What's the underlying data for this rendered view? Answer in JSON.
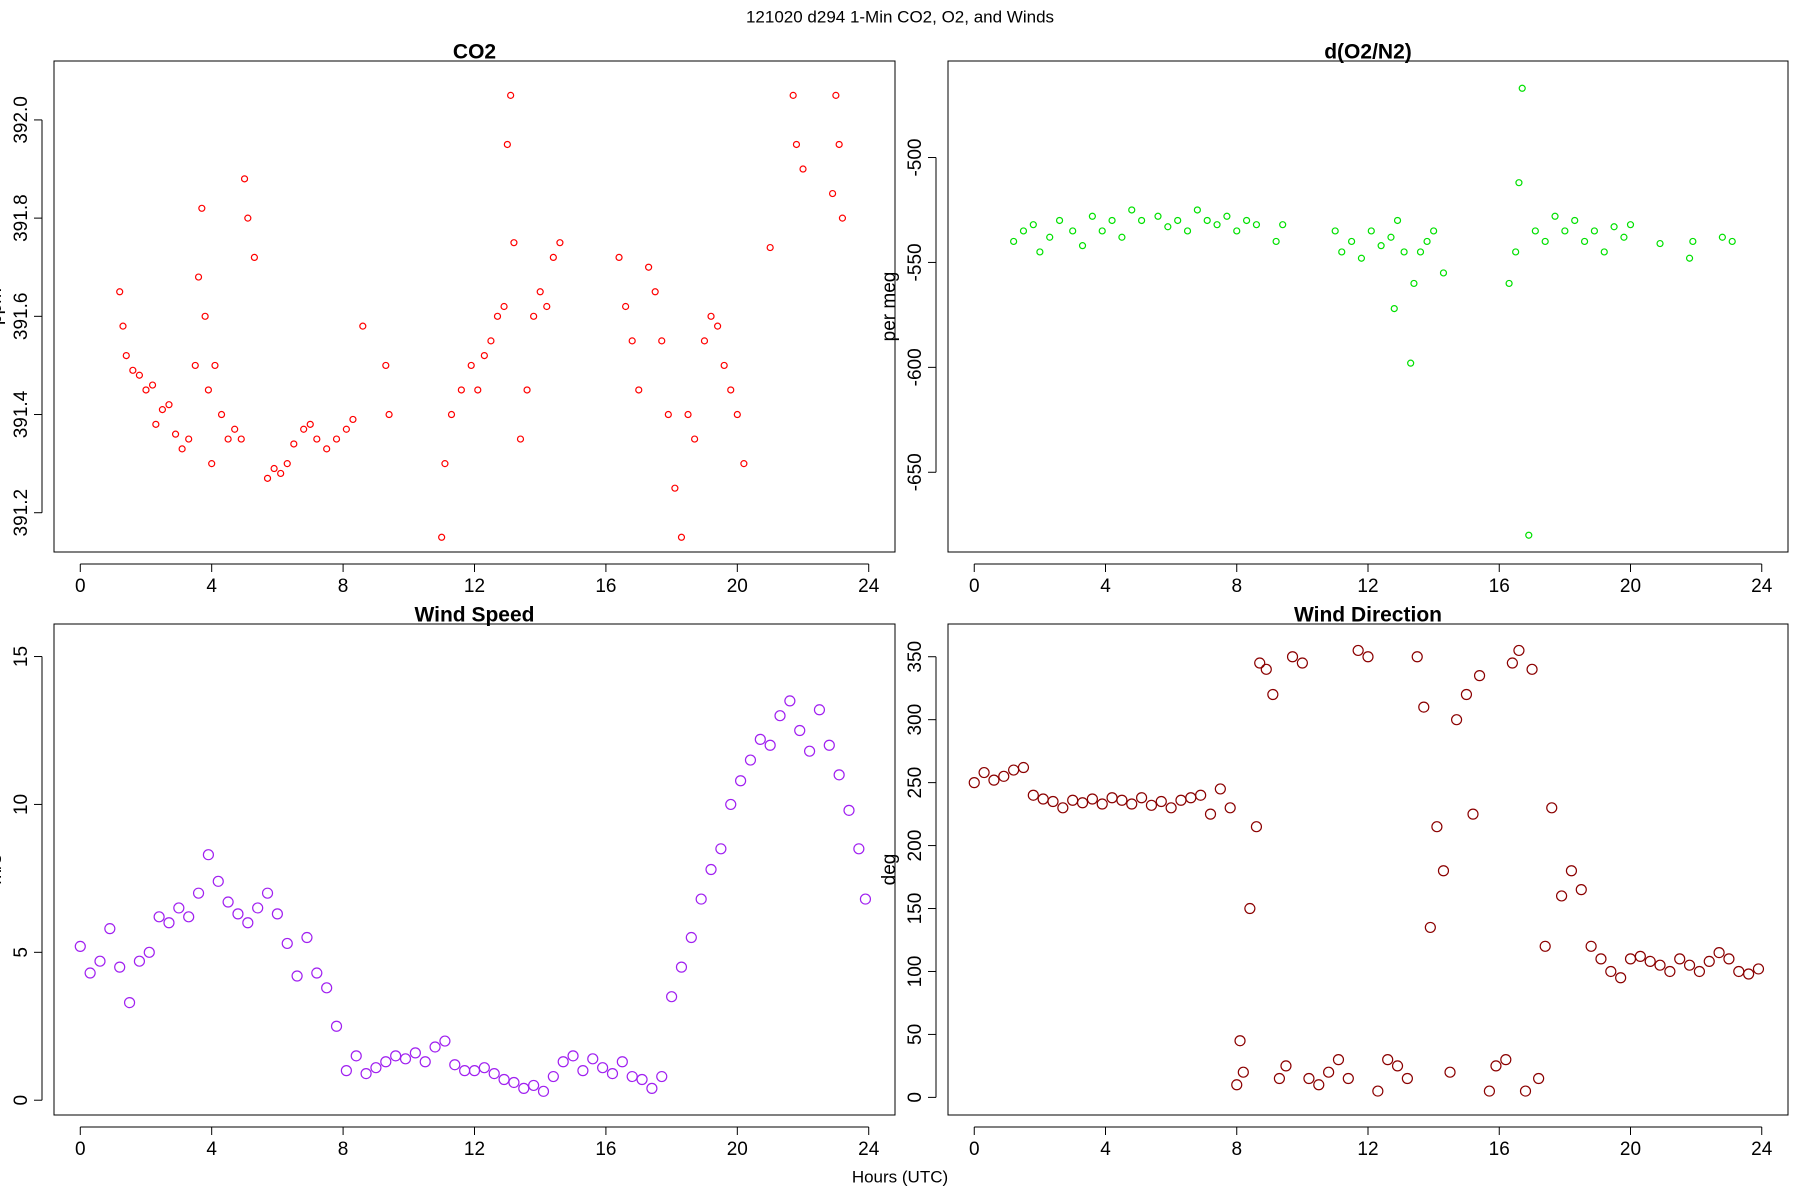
{
  "title": "121020   d294   1-Min CO2, O2, and Winds",
  "x_label": "Hours (UTC)",
  "chart_data": [
    {
      "type": "scatter",
      "title": "CO2",
      "y_label": "ppm",
      "color": "#ff0000",
      "xlim": [
        -0.8,
        24.8
      ],
      "xticks": [
        0,
        4,
        8,
        12,
        16,
        20,
        24
      ],
      "ylim": [
        391.12,
        392.12
      ],
      "yticks": [
        391.2,
        391.4,
        391.6,
        391.8,
        {
          "value": 392.0,
          "label": "392.0"
        }
      ],
      "x": [
        1.2,
        1.3,
        1.4,
        1.6,
        1.8,
        2.0,
        2.2,
        2.3,
        2.5,
        2.7,
        2.9,
        3.1,
        3.3,
        3.5,
        3.6,
        3.7,
        3.8,
        3.9,
        4.0,
        4.1,
        4.3,
        4.5,
        4.7,
        4.9,
        5.0,
        5.1,
        5.3,
        5.7,
        5.9,
        6.1,
        6.3,
        6.5,
        6.8,
        7.0,
        7.2,
        7.5,
        7.8,
        8.1,
        8.3,
        8.6,
        9.3,
        9.4,
        11.0,
        11.1,
        11.3,
        11.6,
        11.9,
        12.1,
        12.3,
        12.5,
        12.7,
        12.9,
        13.0,
        13.1,
        13.2,
        13.4,
        13.6,
        13.8,
        14.0,
        14.2,
        14.4,
        14.6,
        16.4,
        16.6,
        16.8,
        17.0,
        17.3,
        17.5,
        17.7,
        17.9,
        18.1,
        18.3,
        18.5,
        18.7,
        19.0,
        19.2,
        19.4,
        19.6,
        19.8,
        20.0,
        20.2,
        21.0,
        21.7,
        21.8,
        22.0,
        22.9,
        23.0,
        23.1,
        23.2
      ],
      "values": [
        391.65,
        391.58,
        391.52,
        391.49,
        391.48,
        391.45,
        391.46,
        391.38,
        391.41,
        391.42,
        391.36,
        391.33,
        391.35,
        391.5,
        391.68,
        391.82,
        391.6,
        391.45,
        391.3,
        391.5,
        391.4,
        391.35,
        391.37,
        391.35,
        391.88,
        391.8,
        391.72,
        391.27,
        391.29,
        391.28,
        391.3,
        391.34,
        391.37,
        391.38,
        391.35,
        391.33,
        391.35,
        391.37,
        391.39,
        391.58,
        391.5,
        391.4,
        391.15,
        391.3,
        391.4,
        391.45,
        391.5,
        391.45,
        391.52,
        391.55,
        391.6,
        391.62,
        391.95,
        392.05,
        391.75,
        391.35,
        391.45,
        391.6,
        391.65,
        391.62,
        391.72,
        391.75,
        391.72,
        391.62,
        391.55,
        391.45,
        391.7,
        391.65,
        391.55,
        391.4,
        391.25,
        391.15,
        391.4,
        391.35,
        391.55,
        391.6,
        391.58,
        391.5,
        391.45,
        391.4,
        391.3,
        391.74,
        392.05,
        391.95,
        391.9,
        391.85,
        392.05,
        391.95,
        391.8
      ]
    },
    {
      "type": "scatter",
      "title": "d(O2/N2)",
      "y_label": "per meg",
      "color": "#00e000",
      "xlim": [
        -0.8,
        24.8
      ],
      "xticks": [
        0,
        4,
        8,
        12,
        16,
        20,
        24
      ],
      "ylim": [
        -688,
        -454
      ],
      "yticks": [
        -650,
        -600,
        -550,
        -500
      ],
      "x": [
        1.2,
        1.5,
        1.8,
        2.0,
        2.3,
        2.6,
        3.0,
        3.3,
        3.6,
        3.9,
        4.2,
        4.5,
        4.8,
        5.1,
        5.6,
        5.9,
        6.2,
        6.5,
        6.8,
        7.1,
        7.4,
        7.7,
        8.0,
        8.3,
        8.6,
        9.2,
        9.4,
        11.0,
        11.2,
        11.5,
        11.8,
        12.1,
        12.4,
        12.7,
        12.8,
        12.9,
        13.1,
        13.3,
        13.4,
        13.6,
        13.8,
        14.0,
        14.3,
        16.3,
        16.5,
        16.6,
        16.7,
        16.9,
        17.1,
        17.4,
        17.7,
        18.0,
        18.3,
        18.6,
        18.9,
        19.2,
        19.5,
        19.8,
        20.0,
        20.9,
        21.8,
        21.9,
        22.8,
        23.1
      ],
      "values": [
        -540,
        -535,
        -532,
        -545,
        -538,
        -530,
        -535,
        -542,
        -528,
        -535,
        -530,
        -538,
        -525,
        -530,
        -528,
        -533,
        -530,
        -535,
        -525,
        -530,
        -532,
        -528,
        -535,
        -530,
        -532,
        -540,
        -532,
        -535,
        -545,
        -540,
        -548,
        -535,
        -542,
        -538,
        -572,
        -530,
        -545,
        -598,
        -560,
        -545,
        -540,
        -535,
        -555,
        -560,
        -545,
        -512,
        -467,
        -680,
        -535,
        -540,
        -528,
        -535,
        -530,
        -540,
        -535,
        -545,
        -533,
        -538,
        -532,
        -541,
        -548,
        -540,
        -538,
        -540
      ]
    },
    {
      "type": "scatter",
      "title": "Wind Speed",
      "y_label": "m/s",
      "color": "#a020f0",
      "xlim": [
        -0.8,
        24.8
      ],
      "xticks": [
        0,
        4,
        8,
        12,
        16,
        20,
        24
      ],
      "ylim": [
        -0.5,
        16.1
      ],
      "yticks": [
        0,
        5,
        10,
        15
      ],
      "x": [
        0.0,
        0.3,
        0.6,
        0.9,
        1.2,
        1.5,
        1.8,
        2.1,
        2.4,
        2.7,
        3.0,
        3.3,
        3.6,
        3.9,
        4.2,
        4.5,
        4.8,
        5.1,
        5.4,
        5.7,
        6.0,
        6.3,
        6.6,
        6.9,
        7.2,
        7.5,
        7.8,
        8.1,
        8.4,
        8.7,
        9.0,
        9.3,
        9.6,
        9.9,
        10.2,
        10.5,
        10.8,
        11.1,
        11.4,
        11.7,
        12.0,
        12.3,
        12.6,
        12.9,
        13.2,
        13.5,
        13.8,
        14.1,
        14.4,
        14.7,
        15.0,
        15.3,
        15.6,
        15.9,
        16.2,
        16.5,
        16.8,
        17.1,
        17.4,
        17.7,
        18.0,
        18.3,
        18.6,
        18.9,
        19.2,
        19.5,
        19.8,
        20.1,
        20.4,
        20.7,
        21.0,
        21.3,
        21.6,
        21.9,
        22.2,
        22.5,
        22.8,
        23.1,
        23.4,
        23.7,
        23.9
      ],
      "values": [
        5.2,
        4.3,
        4.7,
        5.8,
        4.5,
        3.3,
        4.7,
        5.0,
        6.2,
        6.0,
        6.5,
        6.2,
        7.0,
        8.3,
        7.4,
        6.7,
        6.3,
        6.0,
        6.5,
        7.0,
        6.3,
        5.3,
        4.2,
        5.5,
        4.3,
        3.8,
        2.5,
        1.0,
        1.5,
        0.9,
        1.1,
        1.3,
        1.5,
        1.4,
        1.6,
        1.3,
        1.8,
        2.0,
        1.2,
        1.0,
        1.0,
        1.1,
        0.9,
        0.7,
        0.6,
        0.4,
        0.5,
        0.3,
        0.8,
        1.3,
        1.5,
        1.0,
        1.4,
        1.1,
        0.9,
        1.3,
        0.8,
        0.7,
        0.4,
        0.8,
        3.5,
        4.5,
        5.5,
        6.8,
        7.8,
        8.5,
        10.0,
        10.8,
        11.5,
        12.2,
        12.0,
        13.0,
        13.5,
        12.5,
        11.8,
        13.2,
        12.0,
        11.0,
        9.8,
        8.5,
        6.8
      ]
    },
    {
      "type": "scatter",
      "title": "Wind Direction",
      "y_label": "deg",
      "color": "#8b0000",
      "xlim": [
        -0.8,
        24.8
      ],
      "xticks": [
        0,
        4,
        8,
        12,
        16,
        20,
        24
      ],
      "ylim": [
        -14,
        376
      ],
      "yticks": [
        0,
        50,
        100,
        150,
        200,
        250,
        300,
        350
      ],
      "x": [
        0.0,
        0.3,
        0.6,
        0.9,
        1.2,
        1.5,
        1.8,
        2.1,
        2.4,
        2.7,
        3.0,
        3.3,
        3.6,
        3.9,
        4.2,
        4.5,
        4.8,
        5.1,
        5.4,
        5.7,
        6.0,
        6.3,
        6.6,
        6.9,
        7.2,
        7.5,
        7.8,
        8.0,
        8.1,
        8.2,
        8.4,
        8.6,
        8.7,
        8.9,
        9.1,
        9.3,
        9.5,
        9.7,
        10.0,
        10.2,
        10.5,
        10.8,
        11.1,
        11.4,
        11.7,
        12.0,
        12.3,
        12.6,
        12.9,
        13.2,
        13.5,
        13.7,
        13.9,
        14.1,
        14.3,
        14.5,
        14.7,
        15.0,
        15.2,
        15.4,
        15.7,
        15.9,
        16.2,
        16.4,
        16.6,
        16.8,
        17.0,
        17.2,
        17.4,
        17.6,
        17.9,
        18.2,
        18.5,
        18.8,
        19.1,
        19.4,
        19.7,
        20.0,
        20.3,
        20.6,
        20.9,
        21.2,
        21.5,
        21.8,
        22.1,
        22.4,
        22.7,
        23.0,
        23.3,
        23.6,
        23.9
      ],
      "values": [
        250,
        258,
        252,
        255,
        260,
        262,
        240,
        237,
        235,
        230,
        236,
        234,
        237,
        233,
        238,
        236,
        233,
        238,
        232,
        235,
        230,
        236,
        238,
        240,
        225,
        245,
        230,
        10,
        45,
        20,
        150,
        215,
        345,
        340,
        320,
        15,
        25,
        350,
        345,
        15,
        10,
        20,
        30,
        15,
        355,
        350,
        5,
        30,
        25,
        15,
        350,
        310,
        135,
        215,
        180,
        20,
        300,
        320,
        225,
        335,
        5,
        25,
        30,
        345,
        355,
        5,
        340,
        15,
        120,
        230,
        160,
        180,
        165,
        120,
        110,
        100,
        95,
        110,
        112,
        108,
        105,
        100,
        110,
        105,
        100,
        108,
        115,
        110,
        100,
        98,
        102
      ]
    }
  ]
}
